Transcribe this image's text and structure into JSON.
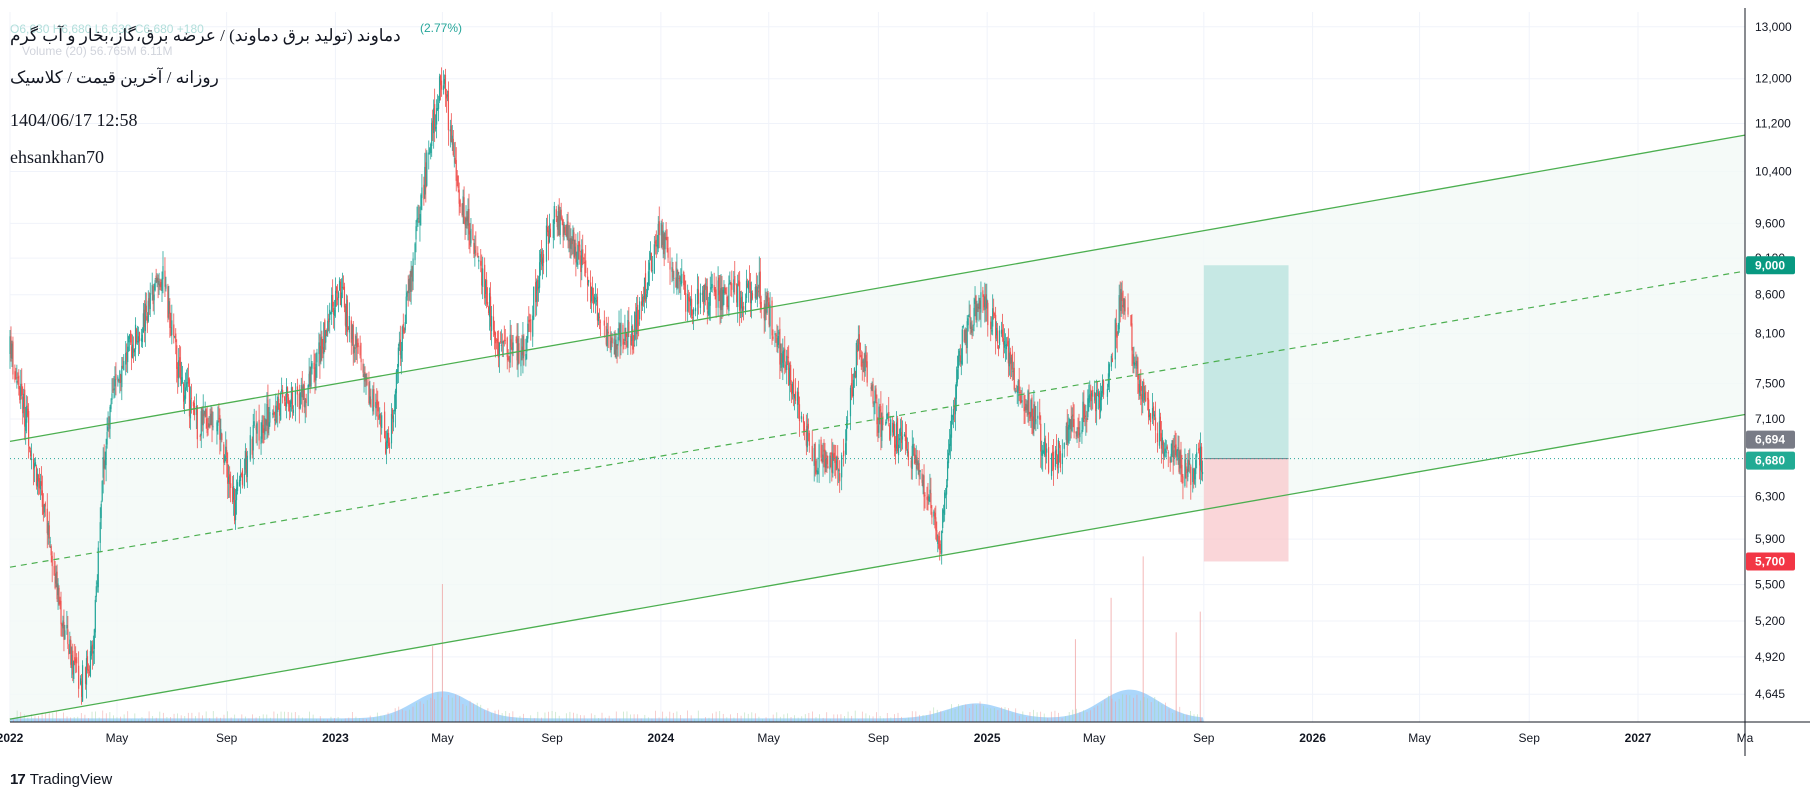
{
  "header": {
    "symbol_line": "دماوند (تولید برق دماوند) / عرضه برق،گاز،بخار و آب گرم",
    "interval_line": "روزانه / آخرین قیمت / کلاسیک",
    "datetime": "1404/06/17 12:58",
    "author": "ehsankhan70",
    "ghost_ohlc": "O6,630 H6,680 L6,630 C6,680 +180",
    "ghost_change": "(2.77%)",
    "ghost_volume": "Volume (20)  56.765M  6.11M"
  },
  "footer": {
    "brand": "TradingView",
    "brand_logo": "17"
  },
  "colors": {
    "up": "#26a69a",
    "down": "#ef5350",
    "channel_line": "#4caf50",
    "channel_fill": "#f3f9f6",
    "target_box": "#b2dfdb",
    "stop_box": "#f8c8cc",
    "volume": "#90caf9",
    "last_price_badge": "#787b86",
    "target_badge": "#089981",
    "stop_badge": "#f23645",
    "current_badge": "#22ab94"
  },
  "chart_data": {
    "type": "candlestick",
    "title": "دماوند (تولید برق دماوند) / عرضه برق،گاز،بخار و آب گرم",
    "y_scale": "log",
    "ylim": [
      4450,
      13300
    ],
    "y_ticks": [
      13000,
      12000,
      11200,
      10400,
      9600,
      9100,
      8600,
      8100,
      7500,
      7100,
      6300,
      5900,
      5500,
      5200,
      4920,
      4645
    ],
    "y_tick_labels": [
      "13,000",
      "12,000",
      "11,200",
      "10,400",
      "9,600",
      "9,100",
      "8,600",
      "8,100",
      "7,500",
      "7,100",
      "6,300",
      "5,900",
      "5,500",
      "5,200",
      "4,920",
      "4,645"
    ],
    "x_ticks": [
      "2022",
      "May",
      "Sep",
      "2023",
      "May",
      "Sep",
      "2024",
      "May",
      "Sep",
      "2025",
      "May",
      "Sep",
      "2026",
      "May",
      "Sep",
      "2027",
      "Ma"
    ],
    "x_tick_dates": [
      "2022-01-01",
      "2022-05-01",
      "2022-09-01",
      "2023-01-01",
      "2023-05-01",
      "2023-09-01",
      "2024-01-01",
      "2024-05-01",
      "2024-09-01",
      "2025-01-01",
      "2025-05-01",
      "2025-09-01",
      "2026-01-01",
      "2026-05-01",
      "2026-09-01",
      "2027-01-01",
      "2027-05-01"
    ],
    "x_range": [
      "2022-01-01",
      "2027-05-01"
    ],
    "price_path": [
      [
        "2022-01-01",
        7900
      ],
      [
        "2022-01-15",
        7300
      ],
      [
        "2022-02-01",
        6500
      ],
      [
        "2022-02-15",
        5800
      ],
      [
        "2022-03-01",
        5200
      ],
      [
        "2022-03-20",
        4700
      ],
      [
        "2022-04-05",
        5000
      ],
      [
        "2022-04-15",
        6600
      ],
      [
        "2022-05-01",
        7600
      ],
      [
        "2022-06-01",
        8300
      ],
      [
        "2022-06-20",
        8900
      ],
      [
        "2022-07-10",
        7600
      ],
      [
        "2022-08-01",
        7000
      ],
      [
        "2022-08-20",
        7200
      ],
      [
        "2022-09-10",
        6200
      ],
      [
        "2022-10-01",
        6900
      ],
      [
        "2022-11-01",
        7300
      ],
      [
        "2022-12-01",
        7400
      ],
      [
        "2023-01-05",
        8700
      ],
      [
        "2023-02-01",
        7600
      ],
      [
        "2023-03-01",
        6800
      ],
      [
        "2023-04-01",
        9300
      ],
      [
        "2023-05-01",
        12100
      ],
      [
        "2023-05-20",
        10000
      ],
      [
        "2023-06-10",
        9100
      ],
      [
        "2023-07-01",
        8000
      ],
      [
        "2023-08-01",
        7900
      ],
      [
        "2023-09-01",
        9700
      ],
      [
        "2023-10-01",
        9200
      ],
      [
        "2023-11-01",
        8000
      ],
      [
        "2023-12-01",
        8100
      ],
      [
        "2024-01-01",
        9500
      ],
      [
        "2024-02-01",
        8400
      ],
      [
        "2024-03-01",
        8600
      ],
      [
        "2024-04-01",
        8600
      ],
      [
        "2024-04-20",
        8700
      ],
      [
        "2024-05-20",
        7700
      ],
      [
        "2024-06-20",
        6700
      ],
      [
        "2024-07-20",
        6600
      ],
      [
        "2024-08-10",
        8000
      ],
      [
        "2024-09-01",
        7100
      ],
      [
        "2024-10-10",
        6700
      ],
      [
        "2024-11-10",
        5900
      ],
      [
        "2024-12-01",
        7900
      ],
      [
        "2024-12-25",
        8600
      ],
      [
        "2025-02-01",
        7600
      ],
      [
        "2025-03-15",
        6600
      ],
      [
        "2025-04-20",
        7200
      ],
      [
        "2025-05-15",
        7400
      ],
      [
        "2025-06-01",
        8600
      ],
      [
        "2025-06-20",
        7500
      ],
      [
        "2025-07-15",
        6900
      ],
      [
        "2025-08-15",
        6500
      ],
      [
        "2025-09-01",
        6680
      ]
    ],
    "volume": {
      "label": "Volume (20)",
      "spikes": [
        [
          "2023-05-01",
          1.0
        ],
        [
          "2023-04-20",
          0.55
        ],
        [
          "2025-05-20",
          0.9
        ],
        [
          "2025-06-25",
          1.2
        ],
        [
          "2025-08-28",
          0.8
        ],
        [
          "2025-04-10",
          0.6
        ],
        [
          "2025-08-01",
          0.65
        ]
      ],
      "ma_bumps": [
        [
          "2023-05-01",
          0.45
        ],
        [
          "2024-12-20",
          0.25
        ],
        [
          "2025-06-10",
          0.48
        ]
      ]
    },
    "channel": {
      "upper": [
        [
          "2022-01-01",
          6860
        ],
        [
          "2027-05-01",
          11000
        ]
      ],
      "lower": [
        [
          "2022-01-01",
          4470
        ],
        [
          "2027-05-01",
          7150
        ]
      ],
      "mid": [
        [
          "2022-01-01",
          5650
        ],
        [
          "2027-05-01",
          8920
        ]
      ]
    },
    "position": {
      "start": "2025-09-01",
      "end": "2025-12-05",
      "entry": 6680,
      "target": 9000,
      "stop": 5700
    },
    "labels": {
      "last_price": "6,694",
      "current": "6,680",
      "target": "9,000",
      "stop": "5,700"
    }
  }
}
